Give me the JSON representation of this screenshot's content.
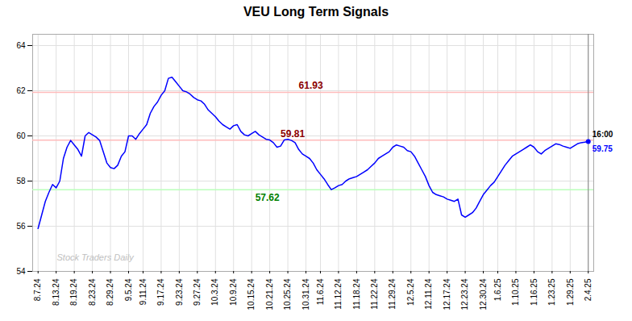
{
  "chart_data": {
    "type": "line",
    "title": "VEU Long Term Signals",
    "categories": [
      "8.7.24",
      null,
      null,
      null,
      null,
      "8.13.24",
      null,
      null,
      null,
      null,
      "8.19.24",
      null,
      null,
      null,
      null,
      "8.23.24",
      null,
      null,
      null,
      null,
      "8.29.24",
      null,
      null,
      null,
      null,
      "9.5.24",
      null,
      null,
      null,
      "9.11.24",
      null,
      null,
      null,
      null,
      "9.17.24",
      null,
      null,
      null,
      null,
      "9.23.24",
      null,
      null,
      null,
      null,
      "9.27.24",
      null,
      null,
      null,
      null,
      "10.3.24",
      null,
      null,
      null,
      null,
      "10.9.24",
      null,
      null,
      null,
      null,
      "10.15.24",
      null,
      null,
      null,
      null,
      "10.21.24",
      null,
      null,
      null,
      null,
      "10.25.24",
      null,
      null,
      null,
      null,
      "10.31.24",
      null,
      null,
      null,
      "11.6.24",
      null,
      null,
      null,
      null,
      "11.12.24",
      null,
      null,
      null,
      null,
      "11.18.24",
      null,
      null,
      null,
      null,
      "11.22.24",
      null,
      null,
      null,
      null,
      "11.29.24",
      null,
      null,
      null,
      null,
      "12.5.24",
      null,
      null,
      null,
      null,
      "12.11.24",
      null,
      null,
      null,
      null,
      "12.17.24",
      null,
      null,
      null,
      null,
      "12.23.24",
      null,
      null,
      null,
      null,
      "12.30.24",
      null,
      null,
      null,
      "1.6.25",
      null,
      null,
      null,
      null,
      "1.10.25",
      null,
      null,
      null,
      null,
      "1.16.25",
      null,
      null,
      null,
      null,
      "1.23.25",
      null,
      null,
      null,
      null,
      "1.29.25",
      null,
      null,
      null,
      null,
      "2.4.25"
    ],
    "values": [
      55.9,
      56.5,
      57.1,
      57.5,
      57.85,
      57.7,
      58.0,
      59.0,
      59.5,
      59.8,
      59.6,
      59.4,
      59.1,
      60.0,
      60.15,
      60.05,
      59.95,
      59.8,
      59.3,
      58.8,
      58.6,
      58.55,
      58.7,
      59.1,
      59.3,
      60.0,
      60.0,
      59.85,
      60.1,
      60.3,
      60.5,
      61.0,
      61.3,
      61.5,
      61.8,
      62.0,
      62.55,
      62.6,
      62.4,
      62.2,
      62.0,
      61.95,
      61.85,
      61.7,
      61.6,
      61.55,
      61.4,
      61.15,
      61.0,
      60.85,
      60.65,
      60.5,
      60.4,
      60.3,
      60.45,
      60.5,
      60.2,
      60.05,
      60.0,
      60.1,
      60.2,
      60.05,
      59.95,
      59.85,
      59.82,
      59.7,
      59.5,
      59.55,
      59.82,
      59.85,
      59.8,
      59.7,
      59.4,
      59.2,
      59.1,
      59.0,
      58.8,
      58.5,
      58.3,
      58.1,
      57.85,
      57.62,
      57.7,
      57.8,
      57.85,
      58.0,
      58.1,
      58.15,
      58.2,
      58.3,
      58.4,
      58.5,
      58.65,
      58.8,
      59.0,
      59.1,
      59.2,
      59.3,
      59.5,
      59.6,
      59.55,
      59.5,
      59.35,
      59.3,
      59.1,
      58.8,
      58.5,
      58.2,
      57.8,
      57.5,
      57.4,
      57.35,
      57.3,
      57.2,
      57.15,
      57.1,
      57.2,
      56.5,
      56.4,
      56.5,
      56.6,
      56.8,
      57.1,
      57.4,
      57.6,
      57.8,
      57.95,
      58.2,
      58.45,
      58.7,
      58.9,
      59.1,
      59.2,
      59.3,
      59.4,
      59.5,
      59.6,
      59.5,
      59.3,
      59.2,
      59.35,
      59.45,
      59.55,
      59.65,
      59.62,
      59.55,
      59.5,
      59.45,
      59.55,
      59.65,
      59.7,
      59.72,
      59.75
    ],
    "color": "blue",
    "ylim": [
      54,
      64.5
    ],
    "yticks": [
      54,
      56,
      58,
      60,
      62,
      64
    ],
    "grid": true,
    "hlines": [
      {
        "value": 61.93,
        "color": "#ffbbbb",
        "label": "61.93",
        "label_color": "darkred"
      },
      {
        "value": 59.81,
        "color": "#ffbbbb",
        "label": "59.81",
        "label_color": "darkred"
      },
      {
        "value": 57.62,
        "color": "#bbffbb",
        "label": "57.62",
        "label_color": "green"
      }
    ],
    "annotations": [
      {
        "text": "16:00",
        "color": "black"
      },
      {
        "text": "59.75",
        "color": "blue"
      }
    ],
    "watermark": {
      "text": "Stock Traders Daily",
      "color": "#c0c0c0"
    }
  }
}
